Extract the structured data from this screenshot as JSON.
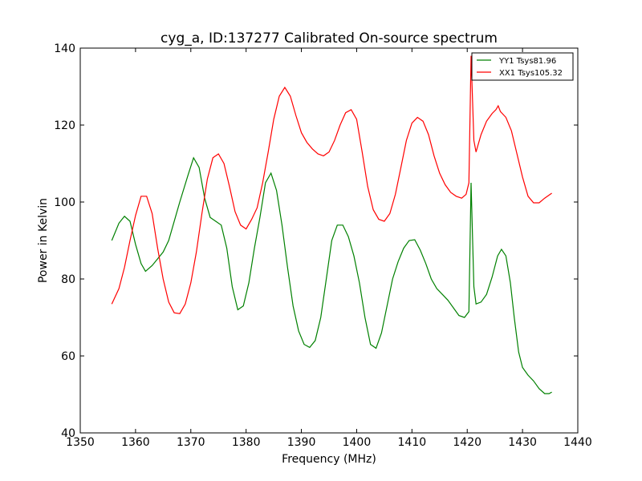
{
  "chart_data": {
    "type": "line",
    "title": "cyg_a, ID:137277 Calibrated On-source spectrum",
    "xlabel": "Frequency (MHz)",
    "ylabel": "Power in Kelvin",
    "xlim": [
      1350,
      1440
    ],
    "ylim": [
      40,
      140
    ],
    "xticks": [
      1350,
      1360,
      1370,
      1380,
      1390,
      1400,
      1410,
      1420,
      1430,
      1440
    ],
    "yticks": [
      40,
      60,
      80,
      100,
      120,
      140
    ],
    "grid": false,
    "legend": {
      "position": "top-right"
    },
    "series": [
      {
        "name": "YY1 Tsys81.96",
        "color": "#008000",
        "points": [
          [
            1355.7,
            90
          ],
          [
            1357,
            94.5
          ],
          [
            1358,
            96.3
          ],
          [
            1359,
            95
          ],
          [
            1360,
            89
          ],
          [
            1361,
            84
          ],
          [
            1361.8,
            82
          ],
          [
            1363,
            83.5
          ],
          [
            1365,
            87
          ],
          [
            1366,
            90
          ],
          [
            1368,
            100
          ],
          [
            1369.5,
            107
          ],
          [
            1370.5,
            111.5
          ],
          [
            1371.5,
            109
          ],
          [
            1372.5,
            101
          ],
          [
            1373.5,
            96
          ],
          [
            1374.5,
            95
          ],
          [
            1375.5,
            94
          ],
          [
            1376.5,
            88
          ],
          [
            1377.5,
            78
          ],
          [
            1378.5,
            72
          ],
          [
            1379.5,
            73
          ],
          [
            1380.5,
            79
          ],
          [
            1381.5,
            88
          ],
          [
            1382.5,
            96
          ],
          [
            1383.5,
            105
          ],
          [
            1384.5,
            107.5
          ],
          [
            1385.5,
            103
          ],
          [
            1386.5,
            94
          ],
          [
            1387.5,
            83
          ],
          [
            1388.5,
            73
          ],
          [
            1389.5,
            66.5
          ],
          [
            1390.5,
            63
          ],
          [
            1391.5,
            62.2
          ],
          [
            1392.5,
            64
          ],
          [
            1393.5,
            70
          ],
          [
            1394.5,
            80
          ],
          [
            1395.5,
            90
          ],
          [
            1396.5,
            94
          ],
          [
            1397.5,
            94
          ],
          [
            1398.5,
            91
          ],
          [
            1399.5,
            86
          ],
          [
            1400.5,
            79
          ],
          [
            1401.5,
            70
          ],
          [
            1402.5,
            63
          ],
          [
            1403.5,
            62
          ],
          [
            1404.5,
            66
          ],
          [
            1405.5,
            73
          ],
          [
            1406.5,
            80
          ],
          [
            1407.5,
            84.5
          ],
          [
            1408.5,
            88
          ],
          [
            1409.5,
            90
          ],
          [
            1410.5,
            90.2
          ],
          [
            1411.5,
            87.5
          ],
          [
            1412.5,
            84
          ],
          [
            1413.5,
            80
          ],
          [
            1414.5,
            77.5
          ],
          [
            1415.5,
            76
          ],
          [
            1416.5,
            74.5
          ],
          [
            1417.5,
            72.5
          ],
          [
            1418.5,
            70.5
          ],
          [
            1419.5,
            70
          ],
          [
            1420.3,
            71.5
          ],
          [
            1420.7,
            105
          ],
          [
            1421.2,
            78
          ],
          [
            1421.6,
            73.5
          ],
          [
            1422.5,
            74
          ],
          [
            1423.5,
            76
          ],
          [
            1424.5,
            80.5
          ],
          [
            1425.5,
            86
          ],
          [
            1426.2,
            87.7
          ],
          [
            1427,
            86
          ],
          [
            1427.8,
            79
          ],
          [
            1428.5,
            70
          ],
          [
            1429.3,
            61
          ],
          [
            1430,
            57
          ],
          [
            1431,
            55
          ],
          [
            1432,
            53.5
          ],
          [
            1433,
            51.5
          ],
          [
            1434,
            50.2
          ],
          [
            1434.8,
            50.2
          ],
          [
            1435.3,
            50.6
          ]
        ]
      },
      {
        "name": "XX1 Tsys105.32",
        "color": "#ff0000",
        "points": [
          [
            1355.7,
            73.5
          ],
          [
            1357,
            77.5
          ],
          [
            1358,
            83
          ],
          [
            1359,
            90
          ],
          [
            1360,
            96.5
          ],
          [
            1361,
            101.5
          ],
          [
            1362,
            101.5
          ],
          [
            1363,
            97
          ],
          [
            1364,
            88
          ],
          [
            1365,
            80
          ],
          [
            1366,
            74
          ],
          [
            1367,
            71.2
          ],
          [
            1368,
            71
          ],
          [
            1369,
            73.5
          ],
          [
            1370,
            79
          ],
          [
            1371,
            87
          ],
          [
            1372,
            97
          ],
          [
            1373,
            106
          ],
          [
            1374,
            111.5
          ],
          [
            1375,
            112.5
          ],
          [
            1376,
            110
          ],
          [
            1377,
            104
          ],
          [
            1378,
            97.5
          ],
          [
            1379,
            94
          ],
          [
            1380,
            93
          ],
          [
            1381,
            95.5
          ],
          [
            1382,
            98.5
          ],
          [
            1383,
            105
          ],
          [
            1384,
            113
          ],
          [
            1385,
            121.5
          ],
          [
            1386,
            127.5
          ],
          [
            1387,
            129.8
          ],
          [
            1388,
            127.5
          ],
          [
            1389,
            122.5
          ],
          [
            1390,
            118
          ],
          [
            1391,
            115.5
          ],
          [
            1392,
            113.8
          ],
          [
            1393,
            112.5
          ],
          [
            1394,
            112
          ],
          [
            1395,
            113
          ],
          [
            1396,
            116
          ],
          [
            1397,
            120
          ],
          [
            1398,
            123.2
          ],
          [
            1399,
            124
          ],
          [
            1400,
            121.5
          ],
          [
            1401,
            113
          ],
          [
            1402,
            104
          ],
          [
            1403,
            98
          ],
          [
            1404,
            95.5
          ],
          [
            1405,
            95
          ],
          [
            1406,
            97
          ],
          [
            1407,
            102
          ],
          [
            1408,
            109
          ],
          [
            1409,
            116
          ],
          [
            1410,
            120.5
          ],
          [
            1411,
            122
          ],
          [
            1412,
            121
          ],
          [
            1413,
            117.5
          ],
          [
            1414,
            112
          ],
          [
            1415,
            107.5
          ],
          [
            1416,
            104.5
          ],
          [
            1417,
            102.5
          ],
          [
            1418,
            101.5
          ],
          [
            1419,
            101
          ],
          [
            1419.8,
            102
          ],
          [
            1420.3,
            105
          ],
          [
            1420.7,
            138
          ],
          [
            1421.2,
            116
          ],
          [
            1421.6,
            113
          ],
          [
            1422.5,
            117.5
          ],
          [
            1423.5,
            121
          ],
          [
            1424.5,
            123
          ],
          [
            1425.2,
            124
          ],
          [
            1425.6,
            125
          ],
          [
            1426,
            123.5
          ],
          [
            1427,
            122
          ],
          [
            1428,
            118.5
          ],
          [
            1429,
            112.5
          ],
          [
            1430,
            106.5
          ],
          [
            1431,
            101.5
          ],
          [
            1432,
            99.8
          ],
          [
            1433,
            99.8
          ],
          [
            1434,
            101
          ],
          [
            1435,
            102
          ],
          [
            1435.3,
            102.3
          ]
        ]
      }
    ]
  }
}
